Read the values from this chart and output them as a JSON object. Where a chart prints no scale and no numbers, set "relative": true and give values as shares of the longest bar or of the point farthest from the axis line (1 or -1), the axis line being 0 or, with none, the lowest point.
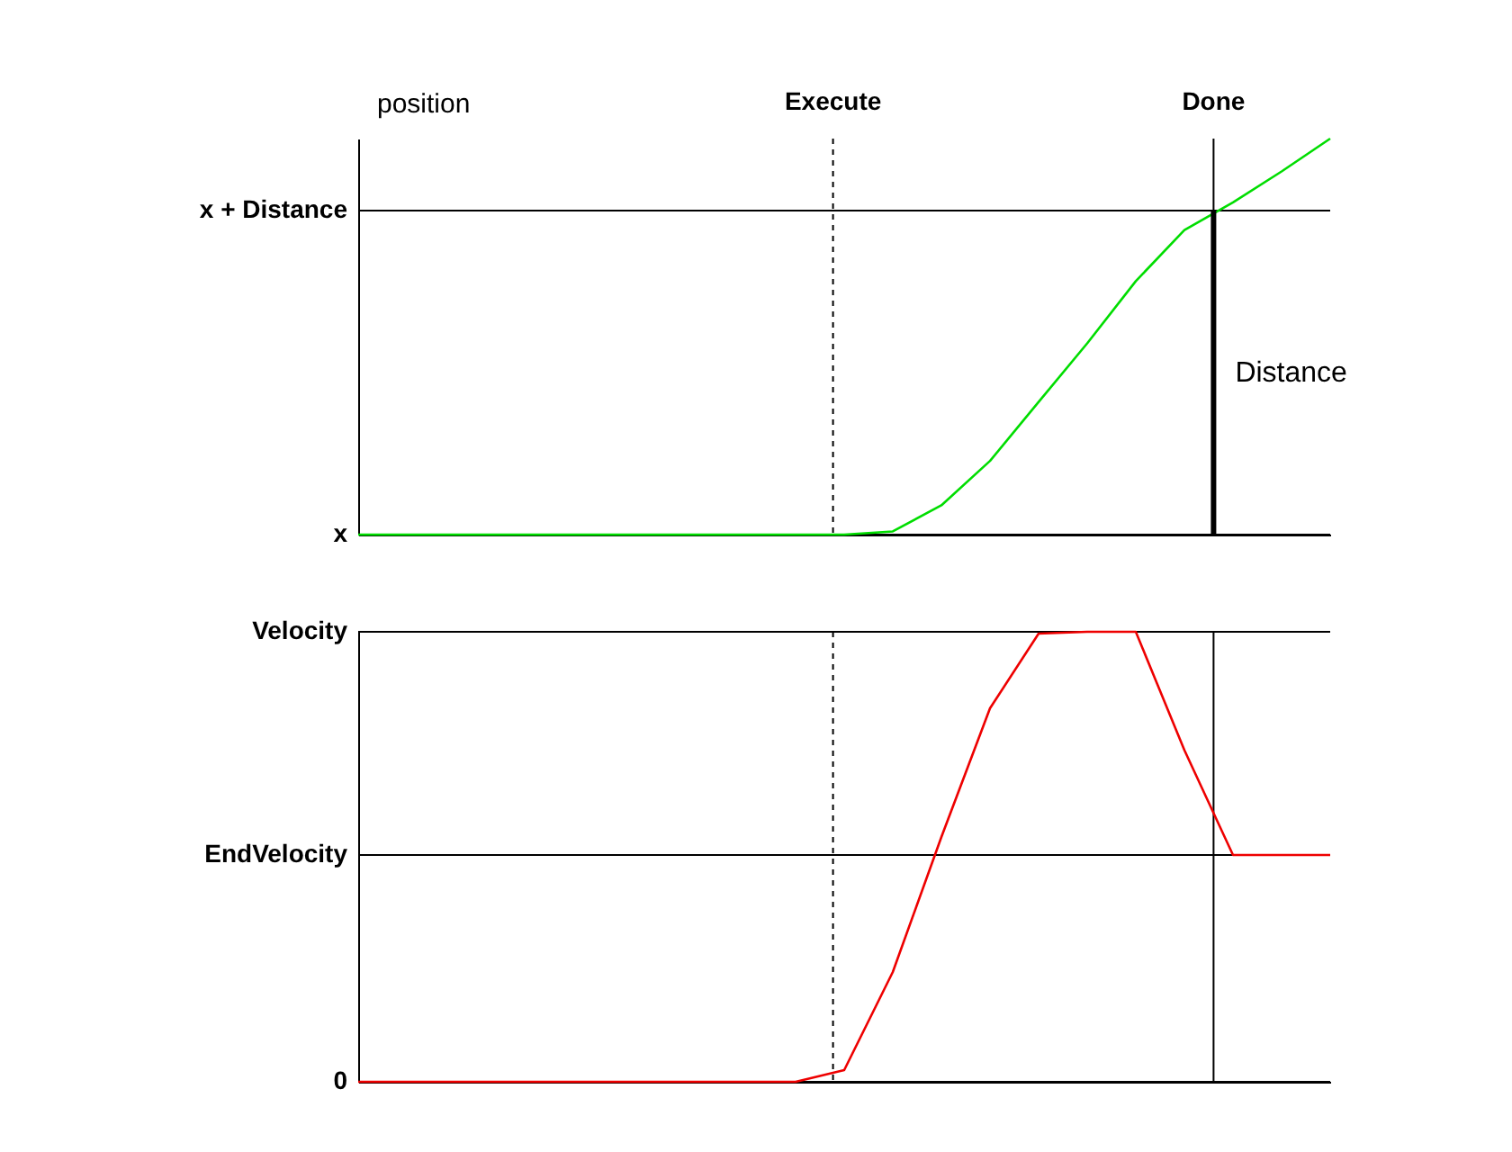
{
  "chart_data": [
    {
      "type": "line",
      "relative": true,
      "ylabel": "position",
      "tick_labels": false,
      "grid": false,
      "categories": [
        null,
        null,
        null,
        null,
        null,
        null,
        null,
        null,
        null,
        null,
        null,
        null,
        null,
        null,
        null,
        null,
        null,
        null,
        null,
        null,
        null
      ],
      "series": [
        {
          "color": "#00dd00",
          "values": [
            0,
            0,
            0,
            0,
            0,
            0,
            0,
            0,
            0,
            0,
            0,
            0.008,
            0.074,
            0.186,
            0.335,
            0.483,
            0.64,
            0.769,
            0.839,
            0.917,
            1
          ]
        }
      ],
      "ref_lines": [
        {
          "axis": "y",
          "value": 0.818,
          "label": "x + Distance"
        },
        {
          "axis": "y",
          "value": 0,
          "label": "x"
        }
      ],
      "annotations": [
        "Execute",
        "Done",
        "Distance"
      ]
    },
    {
      "type": "line",
      "relative": true,
      "tick_labels": false,
      "grid": false,
      "categories": [
        null,
        null,
        null,
        null,
        null,
        null,
        null,
        null,
        null,
        null,
        null,
        null,
        null,
        null,
        null,
        null,
        null,
        null,
        null,
        null,
        null
      ],
      "series": [
        {
          "color": "#ee0000",
          "values": [
            0,
            0,
            0,
            0,
            0,
            0,
            0,
            0,
            0,
            0,
            0.026,
            0.244,
            0.544,
            0.83,
            0.996,
            1,
            1,
            0.737,
            0.504,
            0.504,
            0.504
          ]
        }
      ],
      "ref_lines": [
        {
          "axis": "y",
          "value": 1,
          "label": "Velocity"
        },
        {
          "axis": "y",
          "value": 0.504,
          "label": "EndVelocity"
        },
        {
          "axis": "y",
          "value": 0,
          "label": "0"
        }
      ]
    }
  ]
}
